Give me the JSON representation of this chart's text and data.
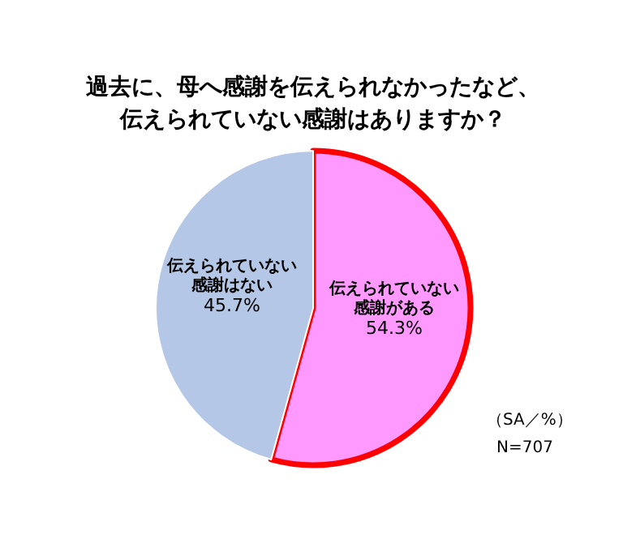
{
  "chart_data": {
    "type": "pie",
    "title": "過去に、母へ感謝を伝えられなかったなど、伝えられていない感謝はありますか？",
    "categories": [
      "伝えられていない感謝がある",
      "伝えられていない感謝はない"
    ],
    "values": [
      54.3,
      45.7
    ],
    "value_labels": [
      "54.3%",
      "45.7%"
    ],
    "colors": [
      "#ff99ff",
      "#b4c7e7"
    ],
    "annotations": [
      "（SA／%）",
      "N=707"
    ]
  }
}
